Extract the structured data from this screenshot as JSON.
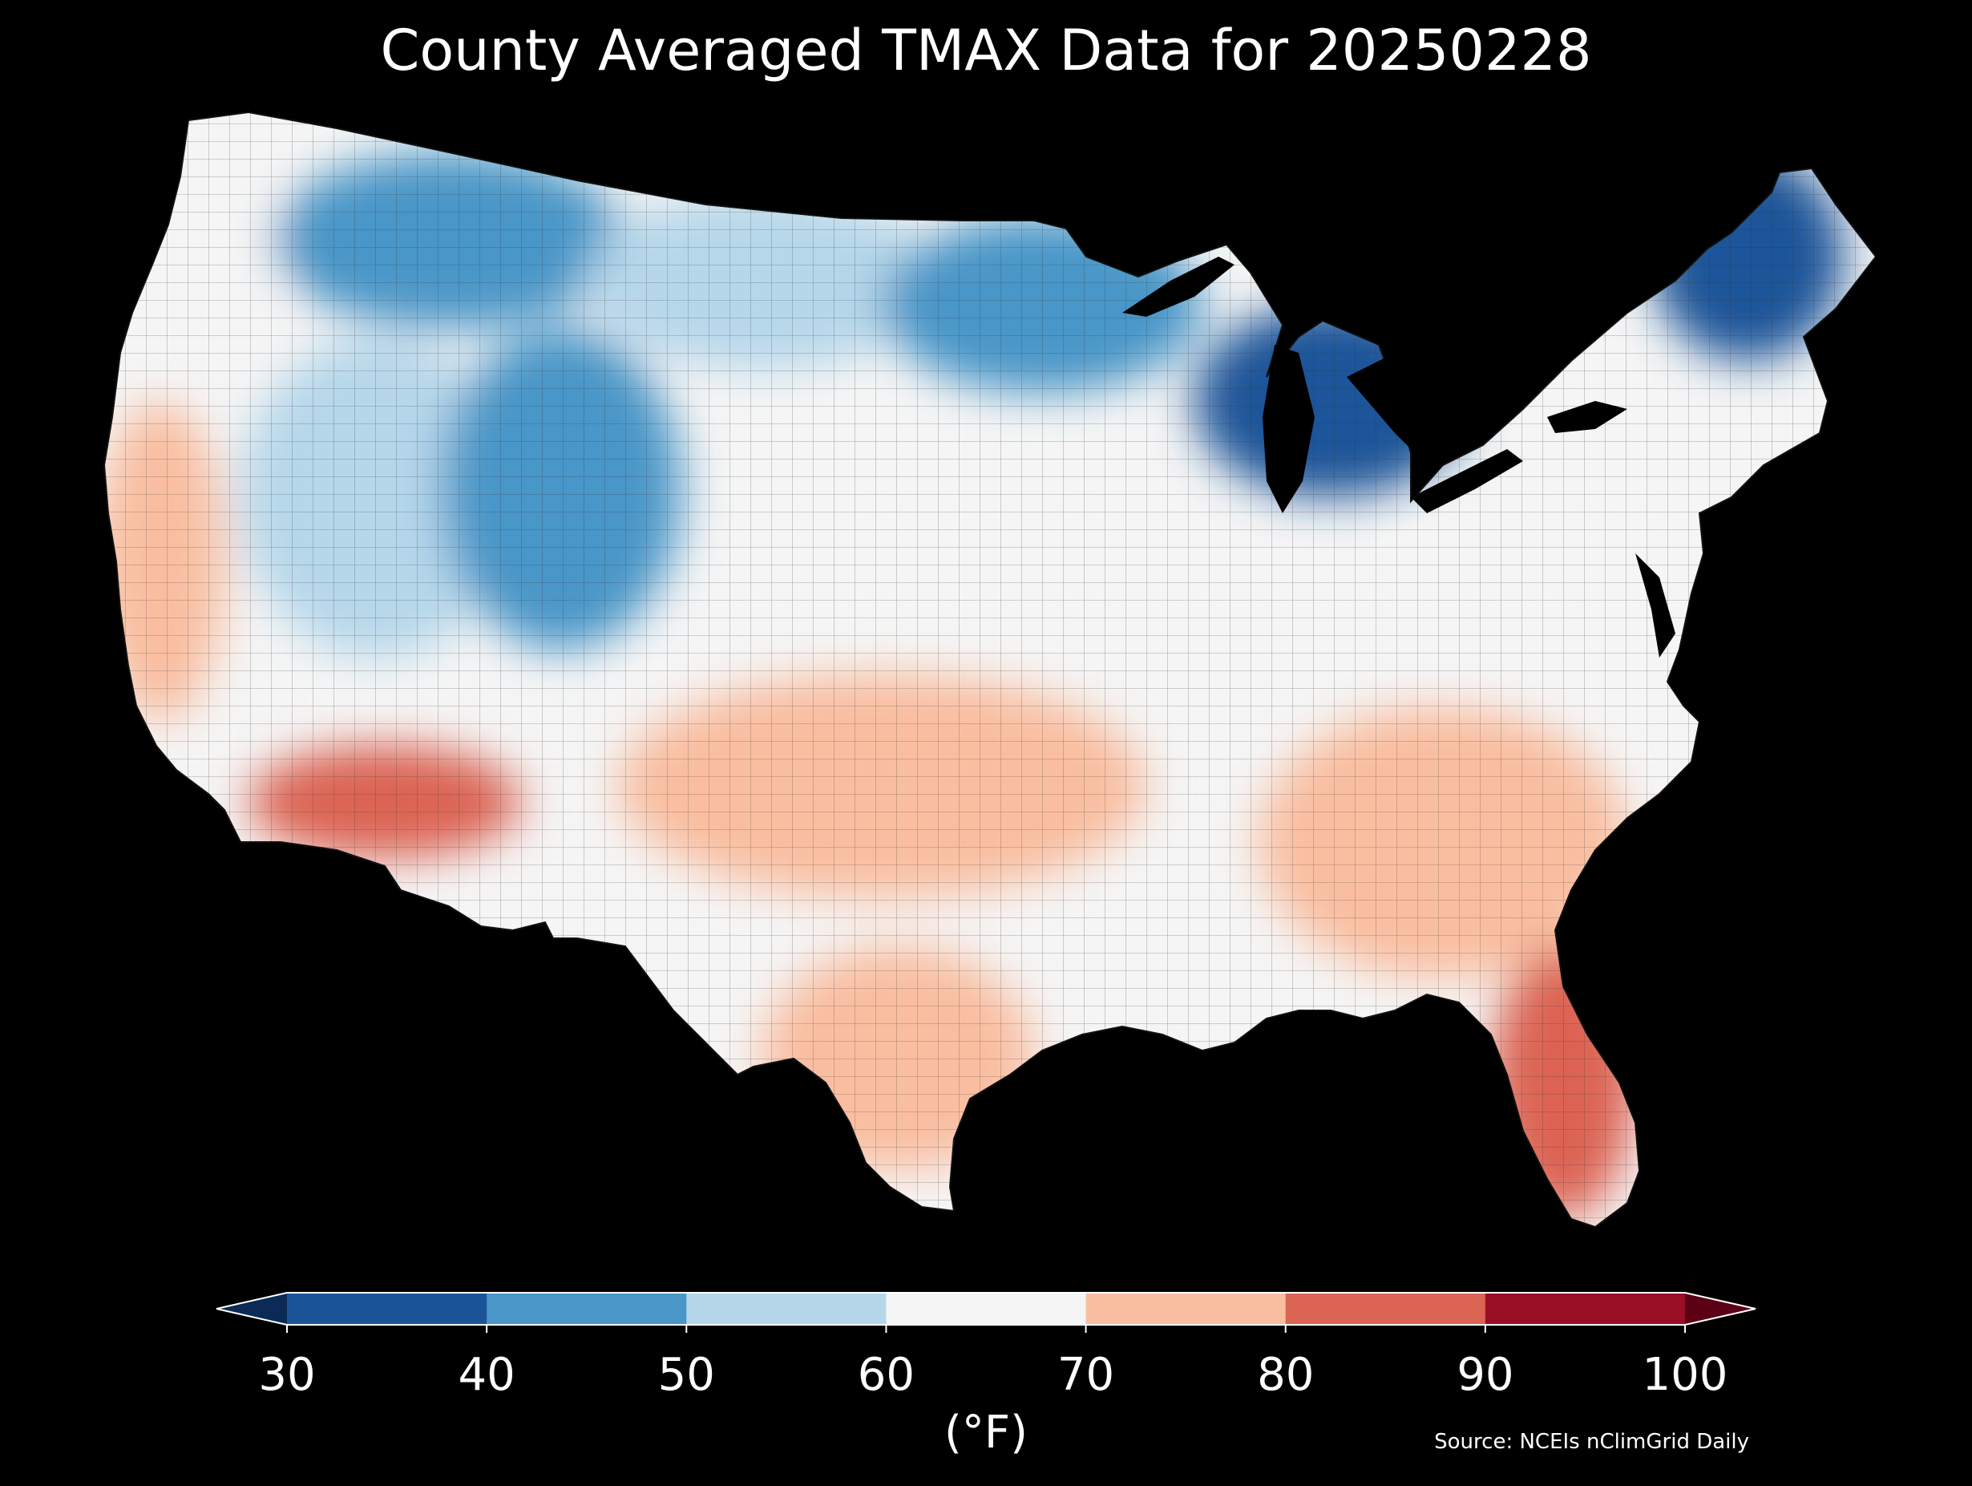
{
  "title": "County Averaged TMAX Data for 20250228",
  "colorbar": {
    "unit_label": "(°F)",
    "ticks": [
      "30",
      "40",
      "50",
      "60",
      "70",
      "80",
      "90",
      "100"
    ],
    "bins": [
      {
        "min": null,
        "max": 30,
        "color": "#0b2a55"
      },
      {
        "min": 30,
        "max": 40,
        "color": "#1b5599"
      },
      {
        "min": 40,
        "max": 50,
        "color": "#4a96c8"
      },
      {
        "min": 50,
        "max": 60,
        "color": "#b6d7ea"
      },
      {
        "min": 60,
        "max": 70,
        "color": "#f5f5f5"
      },
      {
        "min": 70,
        "max": 80,
        "color": "#f9bea0"
      },
      {
        "min": 80,
        "max": 90,
        "color": "#dc6453"
      },
      {
        "min": 90,
        "max": 100,
        "color": "#9a0e26"
      },
      {
        "min": 100,
        "max": null,
        "color": "#5c0015"
      }
    ],
    "extend": "both"
  },
  "source": "Source: NCEIs nClimGrid Daily",
  "map": {
    "region": "Contiguous United States",
    "boundaries": "counties",
    "water_color": "#000000",
    "regions_approx_tmax_f": [
      {
        "name": "Pacific Northwest coast",
        "value": 62
      },
      {
        "name": "California coast and valleys",
        "value": 76
      },
      {
        "name": "Southern California / Arizona desert",
        "value": 80
      },
      {
        "name": "Great Basin",
        "value": 58
      },
      {
        "name": "Northern Rockies",
        "value": 48
      },
      {
        "name": "Central Rockies (Colorado/Wyoming)",
        "value": 40
      },
      {
        "name": "Northern Plains",
        "value": 58
      },
      {
        "name": "Upper Midwest",
        "value": 42
      },
      {
        "name": "Great Lakes",
        "value": 36
      },
      {
        "name": "Northern New England",
        "value": 32
      },
      {
        "name": "Mid-Atlantic",
        "value": 62
      },
      {
        "name": "Southern Plains",
        "value": 70
      },
      {
        "name": "Texas Gulf coast",
        "value": 77
      },
      {
        "name": "Southeast",
        "value": 78
      },
      {
        "name": "Florida",
        "value": 83
      }
    ]
  }
}
